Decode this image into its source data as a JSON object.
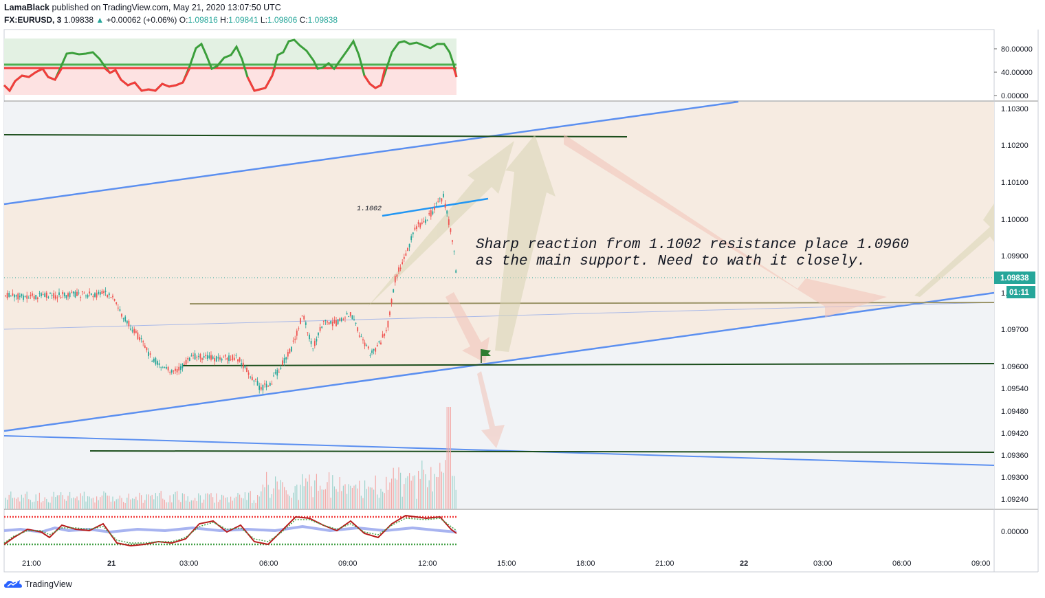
{
  "header": {
    "author": "LamaBlack",
    "published_text": "published on TradingView.com, May 21, 2020 13:07:50 UTC",
    "symbol": "FX:EURUSD, 3",
    "last_price": "1.09838",
    "change_arrow": "▲",
    "change": "+0.00062 (+0.06%)",
    "o_label": "O:",
    "o_value": "1.09816",
    "h_label": "H:",
    "h_value": "1.09841",
    "l_label": "L:",
    "l_value": "1.09806",
    "c_label": "C:",
    "c_value": "1.09838"
  },
  "top_indicator": {
    "axis_labels": [
      "80.00000",
      "40.00000",
      "0.00000"
    ]
  },
  "price_axis": {
    "labels": [
      "1.10300",
      "1.10200",
      "1.10100",
      "1.10000",
      "1.09900",
      "1.09700",
      "1.09600",
      "1.09540",
      "1.09480",
      "1.09420",
      "1.09360",
      "1.09300",
      "1.09240"
    ],
    "current_price": "1.09838",
    "countdown": "01:11",
    "countdown_prefix": "1."
  },
  "bottom_indicator": {
    "axis_label": "0.00000"
  },
  "time_axis": {
    "labels": [
      "21:00",
      "21",
      "03:00",
      "06:00",
      "09:00",
      "12:00",
      "15:00",
      "18:00",
      "21:00",
      "22",
      "03:00",
      "06:00",
      "09:00"
    ]
  },
  "annotations": {
    "level_label": "1.1002",
    "note_line1": "Sharp reaction from 1.1002 resistance place 1.0960",
    "note_line2": "as the main support. Need to wath it closely."
  },
  "footer": {
    "brand": "TradingView"
  },
  "colors": {
    "up": "#26a69a",
    "down": "#ef5350",
    "channel_line": "#5b8ff0",
    "support_line": "#1b4d1b",
    "channel_fill": "#f6ebe1",
    "osc_green": "#43a047",
    "osc_red": "#f23c3c"
  }
}
